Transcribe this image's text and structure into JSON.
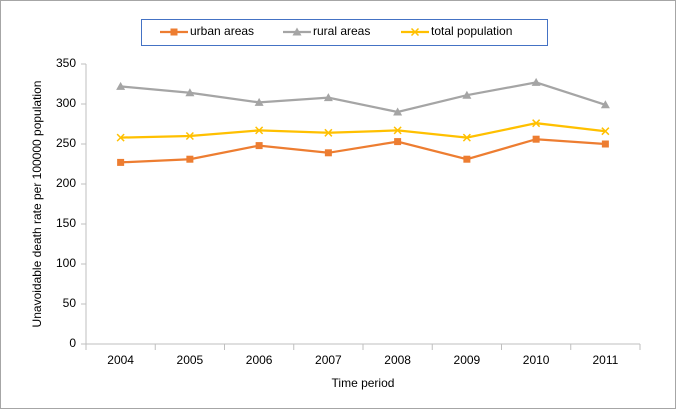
{
  "chart_data": {
    "type": "line",
    "x_label": "Time period",
    "y_label": "Unavoidable death rate per 100000 population",
    "categories": [
      "2004",
      "2005",
      "2006",
      "2007",
      "2008",
      "2009",
      "2010",
      "2011"
    ],
    "series": [
      {
        "name": "urban areas",
        "color": "#ED7D31",
        "marker": "square",
        "values": [
          227,
          231,
          248,
          239,
          253,
          231,
          256,
          250
        ]
      },
      {
        "name": "rural areas",
        "color": "#A5A5A5",
        "marker": "triangle",
        "values": [
          322,
          314,
          302,
          308,
          290,
          311,
          327,
          299
        ]
      },
      {
        "name": "total population",
        "color": "#FFC000",
        "marker": "x",
        "values": [
          258,
          260,
          267,
          264,
          267,
          258,
          276,
          266
        ]
      }
    ],
    "ylim": [
      0,
      350
    ],
    "yticks": [
      0,
      50,
      100,
      150,
      200,
      250,
      300,
      350
    ],
    "grid": false,
    "legend": "top"
  }
}
